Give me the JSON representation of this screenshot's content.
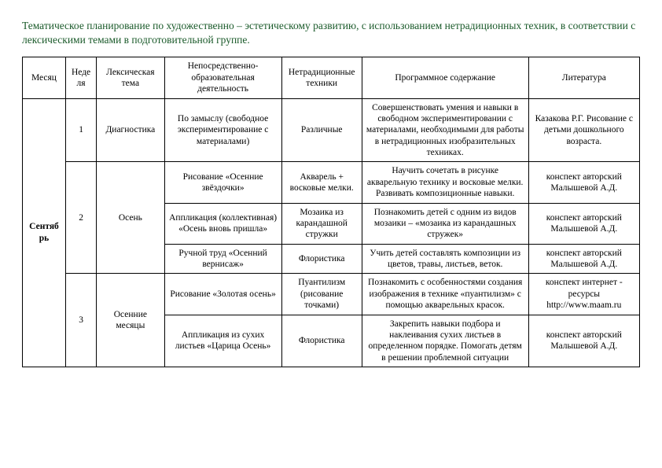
{
  "title": "Тематическое планирование по художественно – эстетическому развитию, с использованием нетрадиционных техник, в соответствии с лексическими темами в подготовительной группе.",
  "headers": {
    "month": "Месяц",
    "week": "Неделя",
    "theme": "Лексическая тема",
    "activity": "Непосредственно-образовательная деятельность",
    "tech": "Нетрадиционные техники",
    "program": "Программное содержание",
    "lit": "Литература"
  },
  "month_label": "Сентябрь",
  "rows": [
    {
      "week": "1",
      "theme": "Диагностика",
      "activity": "По замыслу (свободное экспериментирование с материалами)",
      "tech": "Различные",
      "program": "Совершенствовать умения и навыки в свободном экспериментировании с материалами, необходимыми для работы в нетрадиционных изобразительных техниках.",
      "lit": "Казакова Р.Г. Рисование с детьми дошкольного возраста."
    },
    {
      "week": "2",
      "theme": "Осень",
      "activity": "Рисование «Осенние звёздочки»",
      "tech": "Акварель + восковые мелки.",
      "program": "Научить сочетать в рисунке акварельную технику и восковые мелки. Развивать композиционные навыки.",
      "lit": "конспект авторский Малышевой А.Д."
    },
    {
      "activity": "Аппликация (коллективная) «Осень вновь пришла»",
      "tech": "Мозаика из карандашной стружки",
      "program": "Познакомить детей с одним из видов мозаики – «мозаика из карандашных стружек»",
      "lit": "конспект авторский Малышевой А.Д."
    },
    {
      "activity": "Ручной труд «Осенний вернисаж»",
      "tech": "Флористика",
      "program": "Учить детей составлять композиции из цветов, травы, листьев, веток.",
      "lit": "конспект авторский Малышевой А.Д."
    },
    {
      "week": "3",
      "theme": "Осенние месяцы",
      "activity": "Рисование «Золотая осень»",
      "tech": "Пуантилизм (рисование точками)",
      "program": "Познакомить с особенностями создания изображения в технике «пуантилизм» с помощью акварельных красок.",
      "lit": "конспект интернет - ресурсы http://www.maam.ru"
    },
    {
      "activity": "Аппликация из сухих листьев «Царица Осень»",
      "tech": "Флористика",
      "program": "Закрепить навыки подбора и наклеивания сухих листьев в определенном порядке. Помогать детям в решении проблемной ситуации",
      "lit": "конспект авторский Малышевой А.Д."
    }
  ]
}
